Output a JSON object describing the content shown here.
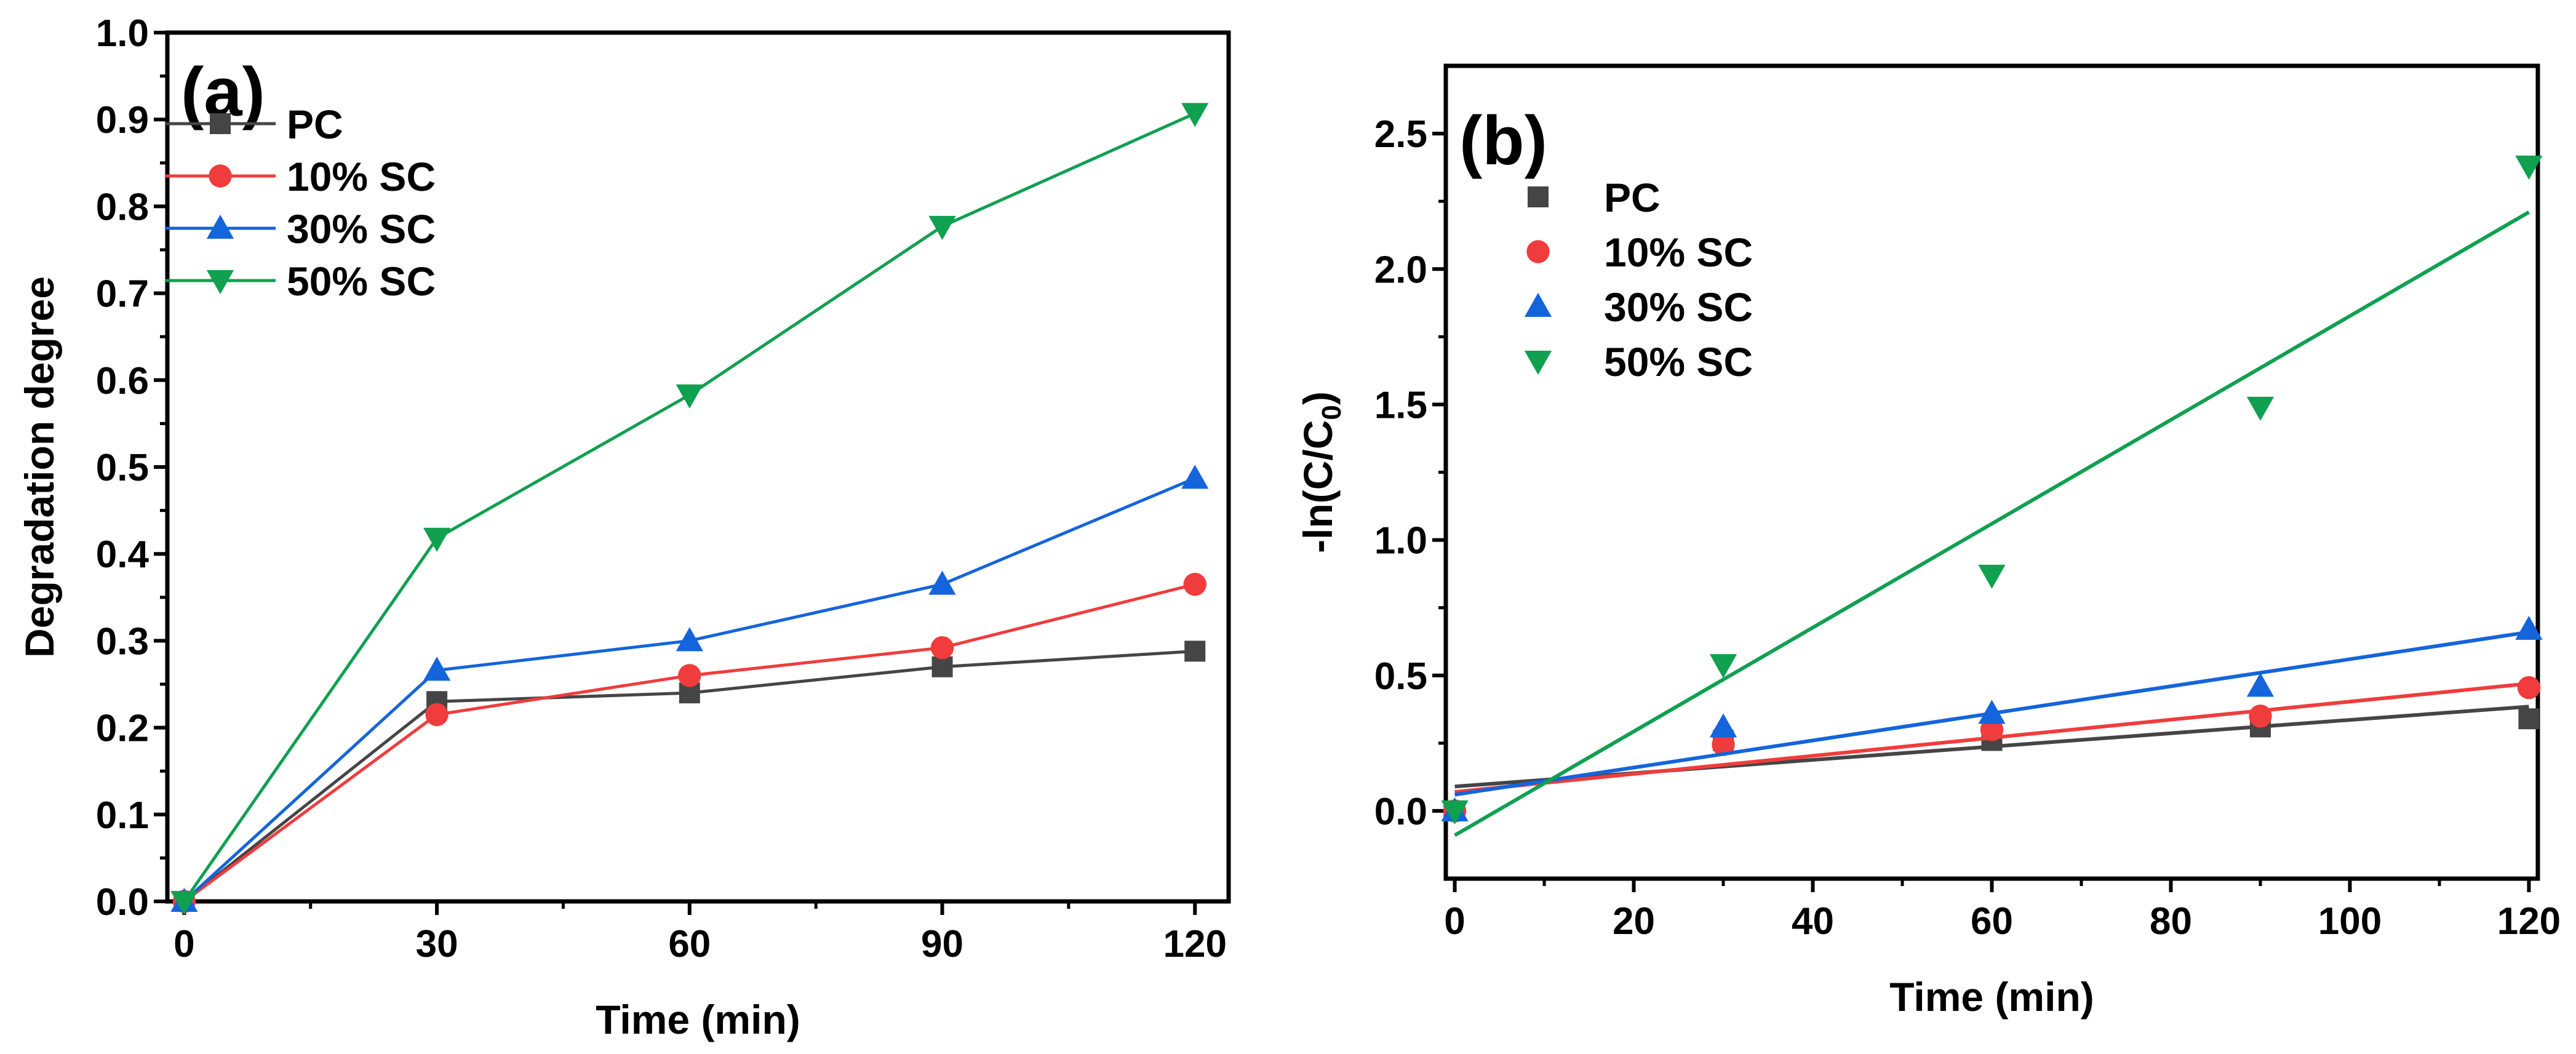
{
  "colors": {
    "PC": "#454545",
    "10% SC": "#f03c3c",
    "30% SC": "#1464dc",
    "50% SC": "#0fa050"
  },
  "chart_data": [
    {
      "type": "line",
      "panel_label": "(a)",
      "xlabel": "Time (min)",
      "ylabel": "Degradation degree",
      "xlim": [
        -2,
        124
      ],
      "ylim": [
        0,
        1.0
      ],
      "xticks": [
        "0",
        "30",
        "60",
        "90",
        "120"
      ],
      "xtick_values": [
        0,
        30,
        60,
        90,
        120
      ],
      "yticks": [
        "0.0",
        "0.1",
        "0.2",
        "0.3",
        "0.4",
        "0.5",
        "0.6",
        "0.7",
        "0.8",
        "0.9",
        "1.0"
      ],
      "ytick_values": [
        0,
        0.1,
        0.2,
        0.3,
        0.4,
        0.5,
        0.6,
        0.7,
        0.8,
        0.9,
        1.0
      ],
      "legend_position": "top-left",
      "x": [
        0,
        30,
        60,
        90,
        120
      ],
      "series": [
        {
          "name": "PC",
          "marker": "square",
          "values": [
            0,
            0.23,
            0.24,
            0.27,
            0.288
          ]
        },
        {
          "name": "10% SC",
          "marker": "circle",
          "values": [
            0,
            0.215,
            0.26,
            0.292,
            0.365
          ]
        },
        {
          "name": "30% SC",
          "marker": "triangle-up",
          "values": [
            0,
            0.266,
            0.3,
            0.365,
            0.487
          ]
        },
        {
          "name": "50% SC",
          "marker": "triangle-down",
          "values": [
            0,
            0.418,
            0.583,
            0.777,
            0.907
          ]
        }
      ]
    },
    {
      "type": "scatter",
      "panel_label": "(b)",
      "xlabel": "Time (min)",
      "ylabel": "-ln(C/C",
      "ylabel_sub": "0",
      "ylabel_end": ")",
      "xlim": [
        -1,
        121
      ],
      "ylim": [
        -0.25,
        2.75
      ],
      "xticks": [
        "0",
        "20",
        "40",
        "60",
        "80",
        "100",
        "120"
      ],
      "xtick_values": [
        0,
        20,
        40,
        60,
        80,
        100,
        120
      ],
      "yticks": [
        "0.0",
        "0.5",
        "1.0",
        "1.5",
        "2.0",
        "2.5"
      ],
      "ytick_values": [
        0,
        0.5,
        1.0,
        1.5,
        2.0,
        2.5
      ],
      "legend_position": "top-left",
      "x": [
        0,
        30,
        60,
        90,
        120
      ],
      "series": [
        {
          "name": "PC",
          "marker": "square",
          "values": [
            0,
            0.26,
            0.26,
            0.31,
            0.34
          ],
          "fit": [
            0.09,
            0.385
          ]
        },
        {
          "name": "10% SC",
          "marker": "circle",
          "values": [
            0,
            0.245,
            0.3,
            0.35,
            0.455
          ],
          "fit": [
            0.07,
            0.47
          ]
        },
        {
          "name": "30% SC",
          "marker": "triangle-up",
          "values": [
            0,
            0.31,
            0.36,
            0.46,
            0.67
          ],
          "fit": [
            0.06,
            0.66
          ]
        },
        {
          "name": "50% SC",
          "marker": "triangle-down",
          "values": [
            0,
            0.54,
            0.87,
            1.49,
            2.38
          ],
          "fit": [
            -0.09,
            2.21
          ]
        }
      ]
    }
  ]
}
